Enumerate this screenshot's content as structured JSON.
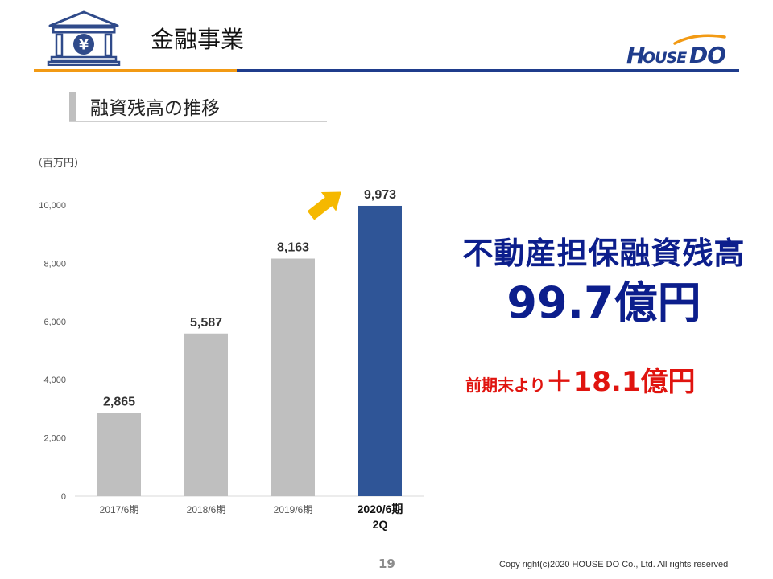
{
  "header": {
    "title": "金融事業",
    "icon": "bank-yen-icon",
    "logo_text": "HOUSEDO"
  },
  "section": {
    "subtitle": "融資残高の推移",
    "unit": "（百万円）"
  },
  "chart_data": {
    "type": "bar",
    "categories": [
      "2017/6期",
      "2018/6期",
      "2019/6期",
      "2020/6期\n2Q"
    ],
    "values": [
      2865,
      5587,
      8163,
      9973
    ],
    "data_labels": [
      "2,865",
      "5,587",
      "8,163",
      "9,973"
    ],
    "yticks": [
      "0",
      "2,000",
      "4,000",
      "6,000",
      "8,000",
      "10,000"
    ],
    "ylim": [
      0,
      10000
    ],
    "title": "",
    "xlabel": "",
    "ylabel": "",
    "grid": false,
    "highlight_index": 3,
    "colors": {
      "bar": "#BFBFBF",
      "highlight": "#2F5597",
      "arrow": "#F5B800"
    }
  },
  "summary": {
    "headline": "不動産担保融資残高",
    "value": "99.7億円",
    "change_label": "前期末より",
    "change_value": "＋18.1億円"
  },
  "footer": {
    "page": "19",
    "copyright": "Copy right(c)2020  HOUSE DO Co., Ltd. All rights reserved"
  },
  "colors": {
    "accent_orange": "#F29A14",
    "accent_blue": "#1F3C8C",
    "headline_navy": "#0C1E8C",
    "change_red": "#E0140F"
  }
}
